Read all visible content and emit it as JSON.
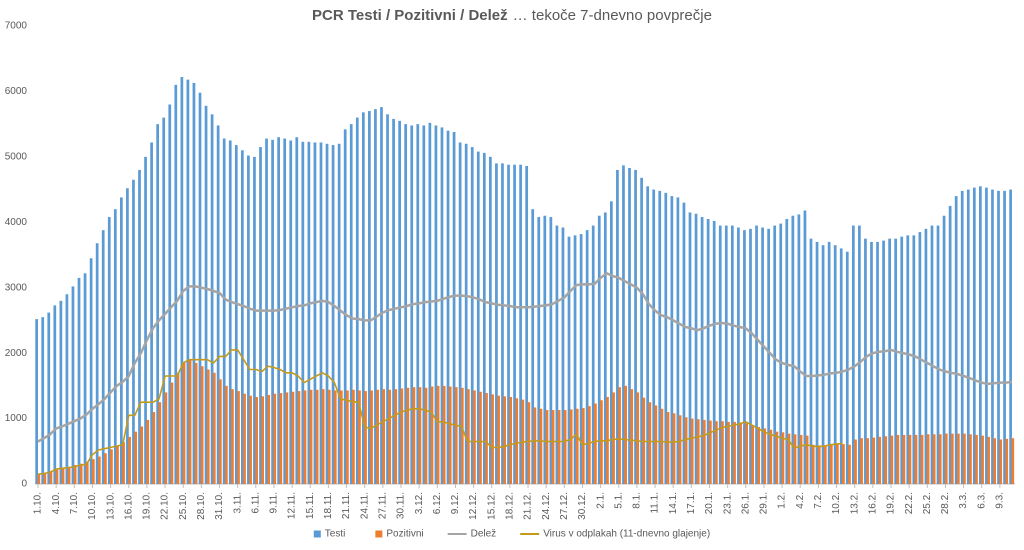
{
  "chart_data": {
    "type": "bar",
    "title": "PCR Testi / Pozitivni / Delež",
    "subtitle": "… tekoče 7-dnevno povprečje",
    "categories": [
      "1.10.",
      null,
      null,
      "4.10.",
      null,
      null,
      "7.10.",
      null,
      null,
      "10.10.",
      null,
      null,
      "13.10.",
      null,
      null,
      "16.10.",
      null,
      null,
      "19.10.",
      null,
      null,
      "22.10.",
      null,
      null,
      "25.10.",
      null,
      null,
      "28.10.",
      null,
      null,
      "31.10.",
      null,
      null,
      "3.11.",
      null,
      null,
      "6.11.",
      null,
      null,
      "9.11.",
      null,
      null,
      "12.11.",
      null,
      null,
      "15.11.",
      null,
      null,
      "18.11.",
      null,
      null,
      "21.11.",
      null,
      null,
      "24.11.",
      null,
      null,
      "27.11.",
      null,
      null,
      "30.11.",
      null,
      null,
      "3.12.",
      null,
      null,
      "6.12.",
      null,
      null,
      "9.12.",
      null,
      null,
      "12.12.",
      null,
      null,
      "15.12.",
      null,
      null,
      "18.12.",
      null,
      null,
      "21.12.",
      null,
      null,
      "24.12.",
      null,
      null,
      "27.12.",
      null,
      null,
      "30.12.",
      null,
      null,
      "2.1.",
      null,
      null,
      "5.1.",
      null,
      null,
      "8.1.",
      null,
      null,
      "11.1.",
      null,
      null,
      "14.1.",
      null,
      null,
      "17.1.",
      null,
      null,
      "20.1.",
      null,
      null,
      "23.1.",
      null,
      null,
      "26.1.",
      null,
      null,
      "29.1.",
      null,
      null,
      "1.2.",
      null,
      null,
      "4.2.",
      null,
      null,
      "7.2.",
      null,
      null,
      "10.2.",
      null,
      null,
      "13.2.",
      null,
      null,
      "16.2.",
      null,
      null,
      "19.2.",
      null,
      null,
      "22.2.",
      null,
      null,
      "25.2.",
      null,
      null,
      "28.2.",
      null,
      null,
      "3.3.",
      null,
      null,
      "6.3.",
      null,
      null,
      "9.3.",
      null,
      null
    ],
    "series": [
      {
        "name": "Testi",
        "type": "bar",
        "color": "#5b9bd5",
        "values": [
          2520,
          2550,
          2620,
          2730,
          2800,
          2900,
          3020,
          3150,
          3220,
          3450,
          3680,
          3880,
          4080,
          4200,
          4380,
          4520,
          4650,
          4800,
          5000,
          5220,
          5500,
          5600,
          5800,
          6100,
          6220,
          6180,
          6130,
          5980,
          5780,
          5650,
          5480,
          5280,
          5250,
          5180,
          5100,
          5020,
          5000,
          5150,
          5280,
          5260,
          5300,
          5280,
          5250,
          5300,
          5230,
          5230,
          5220,
          5220,
          5200,
          5180,
          5200,
          5420,
          5500,
          5600,
          5680,
          5700,
          5730,
          5760,
          5650,
          5580,
          5550,
          5500,
          5480,
          5500,
          5480,
          5520,
          5480,
          5450,
          5400,
          5380,
          5220,
          5200,
          5150,
          5080,
          5060,
          5000,
          4900,
          4900,
          4880,
          4880,
          4880,
          4860,
          4200,
          4080,
          4100,
          4080,
          3950,
          3920,
          3780,
          3800,
          3820,
          3880,
          3950,
          4100,
          4150,
          4320,
          4800,
          4870,
          4830,
          4800,
          4680,
          4550,
          4500,
          4480,
          4450,
          4400,
          4380,
          4300,
          4150,
          4130,
          4080,
          4050,
          4020,
          3950,
          3950,
          3950,
          3920,
          3880,
          3900,
          3950,
          3920,
          3900,
          3950,
          3980,
          4050,
          4100,
          4120,
          4180,
          3750,
          3700,
          3650,
          3700,
          3650,
          3600,
          3550,
          3950,
          3950,
          3750,
          3700,
          3700,
          3720,
          3750,
          3750,
          3780,
          3800,
          3800,
          3850,
          3900,
          3950,
          3950,
          4100,
          4250,
          4400,
          4480,
          4500,
          4530,
          4550,
          4530,
          4500,
          4480,
          4480,
          4500
        ]
      },
      {
        "name": "Pozitivni",
        "type": "bar",
        "color": "#ed7d31",
        "values": [
          150,
          170,
          190,
          220,
          240,
          260,
          290,
          310,
          340,
          380,
          420,
          470,
          530,
          580,
          640,
          720,
          800,
          880,
          980,
          1100,
          1250,
          1400,
          1550,
          1700,
          1850,
          1900,
          1850,
          1800,
          1750,
          1700,
          1600,
          1500,
          1450,
          1420,
          1380,
          1350,
          1330,
          1340,
          1360,
          1380,
          1390,
          1400,
          1410,
          1420,
          1430,
          1440,
          1440,
          1450,
          1440,
          1430,
          1430,
          1430,
          1440,
          1430,
          1420,
          1430,
          1440,
          1450,
          1440,
          1450,
          1460,
          1470,
          1480,
          1480,
          1470,
          1490,
          1500,
          1500,
          1490,
          1480,
          1470,
          1450,
          1430,
          1410,
          1390,
          1370,
          1350,
          1340,
          1330,
          1310,
          1290,
          1250,
          1170,
          1150,
          1130,
          1130,
          1130,
          1130,
          1140,
          1150,
          1160,
          1190,
          1230,
          1280,
          1330,
          1400,
          1480,
          1500,
          1450,
          1400,
          1320,
          1250,
          1200,
          1150,
          1100,
          1080,
          1050,
          1020,
          1000,
          990,
          980,
          970,
          960,
          960,
          950,
          950,
          940,
          930,
          900,
          870,
          850,
          830,
          800,
          790,
          770,
          760,
          750,
          740,
          600,
          590,
          590,
          600,
          610,
          610,
          600,
          680,
          700,
          700,
          710,
          720,
          730,
          740,
          750,
          750,
          750,
          750,
          750,
          760,
          760,
          760,
          770,
          770,
          770,
          770,
          760,
          750,
          740,
          720,
          700,
          680,
          690,
          700
        ]
      },
      {
        "name": "Delež",
        "type": "line",
        "color": "#a5a5a5",
        "values": [
          650,
          700,
          760,
          850,
          880,
          920,
          960,
          1000,
          1060,
          1150,
          1220,
          1300,
          1400,
          1500,
          1560,
          1650,
          1850,
          2000,
          2200,
          2380,
          2500,
          2600,
          2700,
          2800,
          2950,
          3020,
          3020,
          3000,
          2980,
          2950,
          2920,
          2820,
          2780,
          2750,
          2720,
          2680,
          2650,
          2650,
          2650,
          2650,
          2660,
          2680,
          2700,
          2720,
          2730,
          2760,
          2780,
          2800,
          2780,
          2720,
          2650,
          2580,
          2530,
          2520,
          2500,
          2500,
          2560,
          2620,
          2660,
          2680,
          2700,
          2720,
          2750,
          2760,
          2780,
          2790,
          2800,
          2830,
          2860,
          2880,
          2880,
          2870,
          2850,
          2820,
          2780,
          2760,
          2740,
          2730,
          2720,
          2700,
          2700,
          2700,
          2710,
          2720,
          2730,
          2750,
          2800,
          2850,
          2950,
          3040,
          3050,
          3050,
          3060,
          3150,
          3220,
          3180,
          3150,
          3100,
          3050,
          3000,
          2900,
          2750,
          2650,
          2580,
          2550,
          2500,
          2450,
          2400,
          2380,
          2350,
          2380,
          2420,
          2450,
          2460,
          2450,
          2420,
          2400,
          2380,
          2300,
          2200,
          2100,
          2000,
          1900,
          1850,
          1820,
          1800,
          1720,
          1650,
          1650,
          1660,
          1670,
          1690,
          1700,
          1720,
          1750,
          1800,
          1870,
          1950,
          2000,
          2020,
          2030,
          2050,
          2020,
          2000,
          1980,
          1950,
          1900,
          1850,
          1800,
          1750,
          1720,
          1700,
          1680,
          1650,
          1620,
          1580,
          1550,
          1530,
          1540,
          1550,
          1550,
          1560
        ]
      },
      {
        "name": "Virus v odplakah (11-dnevno glajenje)",
        "type": "line",
        "color": "#c49a1c",
        "values": [
          150,
          160,
          180,
          230,
          240,
          250,
          260,
          290,
          300,
          450,
          520,
          540,
          560,
          580,
          600,
          1050,
          1050,
          1250,
          1250,
          1250,
          1300,
          1650,
          1650,
          1650,
          1850,
          1900,
          1900,
          1900,
          1900,
          1850,
          1950,
          1950,
          2050,
          2050,
          1900,
          1750,
          1750,
          1720,
          1800,
          1780,
          1750,
          1700,
          1700,
          1650,
          1550,
          1600,
          1650,
          1700,
          1650,
          1550,
          1300,
          1280,
          1260,
          1250,
          870,
          850,
          900,
          950,
          1000,
          1050,
          1100,
          1130,
          1150,
          1150,
          1130,
          1100,
          950,
          950,
          920,
          900,
          880,
          650,
          650,
          650,
          650,
          560,
          560,
          570,
          600,
          620,
          640,
          650,
          660,
          660,
          650,
          650,
          650,
          650,
          680,
          760,
          600,
          620,
          650,
          660,
          660,
          680,
          690,
          680,
          670,
          660,
          650,
          650,
          650,
          650,
          640,
          640,
          650,
          680,
          700,
          720,
          740,
          780,
          820,
          860,
          880,
          900,
          920,
          950,
          900,
          850,
          800,
          760,
          730,
          700,
          680,
          550,
          580,
          600,
          580,
          570,
          580,
          600,
          610,
          620,
          null,
          null,
          null,
          null,
          null,
          null,
          null,
          null,
          null,
          null,
          null,
          null,
          null,
          null,
          null,
          null,
          null,
          null,
          null,
          null,
          null,
          null,
          null,
          null,
          null,
          null,
          null,
          null
        ]
      }
    ],
    "ylim": [
      0,
      7000
    ],
    "yticks": [
      0,
      1000,
      2000,
      3000,
      4000,
      5000,
      6000,
      7000
    ],
    "grid": false,
    "legend": "bottom"
  }
}
